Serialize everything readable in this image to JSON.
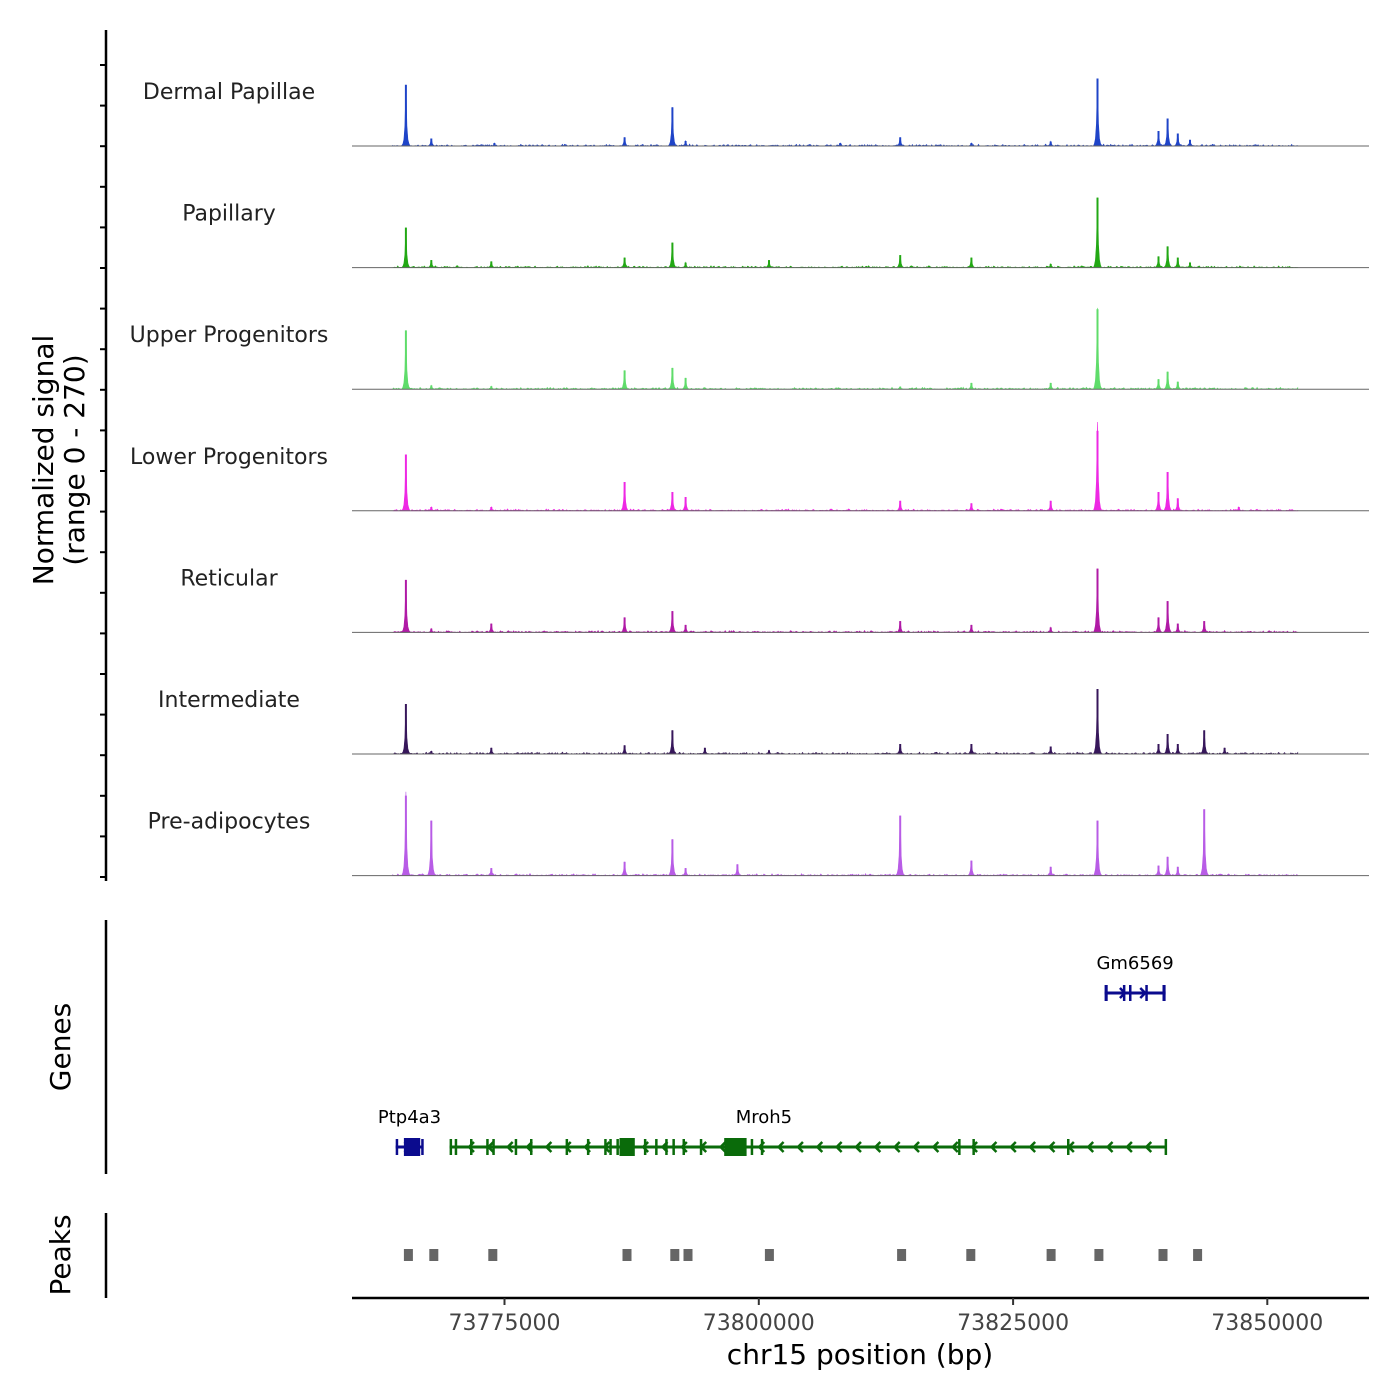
{
  "chart_data": {
    "type": "area",
    "title": "",
    "xlabel": "chr15 position (bp)",
    "ylabel_lines": [
      "Normalized signal",
      "(range 0 - 270)"
    ],
    "ylim": [
      0,
      270
    ],
    "xlim": [
      73760000,
      73860000
    ],
    "xticks": [
      {
        "value": 73775000,
        "label": "73775000"
      },
      {
        "value": 73800000,
        "label": "73800000"
      },
      {
        "value": 73825000,
        "label": "73825000"
      },
      {
        "value": 73850000,
        "label": "73850000"
      }
    ],
    "series": [
      {
        "name": "Dermal Papillae",
        "color": "#1f44c8",
        "peaks": [
          [
            73765300,
            245
          ],
          [
            73767800,
            30
          ],
          [
            73774000,
            12
          ],
          [
            73786800,
            35
          ],
          [
            73791500,
            155
          ],
          [
            73792800,
            20
          ],
          [
            73808000,
            12
          ],
          [
            73813900,
            35
          ],
          [
            73820900,
            12
          ],
          [
            73828700,
            18
          ],
          [
            73833300,
            270
          ],
          [
            73839300,
            60
          ],
          [
            73840200,
            110
          ],
          [
            73841200,
            50
          ],
          [
            73842400,
            25
          ]
        ]
      },
      {
        "name": "Papillary",
        "color": "#22a814",
        "peaks": [
          [
            73765300,
            160
          ],
          [
            73767800,
            30
          ],
          [
            73773700,
            25
          ],
          [
            73786800,
            40
          ],
          [
            73791500,
            100
          ],
          [
            73792800,
            20
          ],
          [
            73801000,
            30
          ],
          [
            73813900,
            50
          ],
          [
            73820900,
            40
          ],
          [
            73828700,
            15
          ],
          [
            73833300,
            280
          ],
          [
            73839300,
            45
          ],
          [
            73840200,
            85
          ],
          [
            73841200,
            40
          ],
          [
            73842400,
            20
          ]
        ]
      },
      {
        "name": "Upper Progenitors",
        "color": "#5fdc6a",
        "peaks": [
          [
            73765300,
            235
          ],
          [
            73767800,
            15
          ],
          [
            73773700,
            12
          ],
          [
            73786800,
            75
          ],
          [
            73791500,
            85
          ],
          [
            73792800,
            45
          ],
          [
            73813900,
            10
          ],
          [
            73820900,
            25
          ],
          [
            73828700,
            25
          ],
          [
            73833300,
            325
          ],
          [
            73839300,
            40
          ],
          [
            73840200,
            70
          ],
          [
            73841200,
            30
          ]
        ]
      },
      {
        "name": "Lower Progenitors",
        "color": "#ee28e4",
        "peaks": [
          [
            73765300,
            225
          ],
          [
            73767800,
            15
          ],
          [
            73773700,
            15
          ],
          [
            73786800,
            115
          ],
          [
            73791500,
            75
          ],
          [
            73792800,
            55
          ],
          [
            73813900,
            40
          ],
          [
            73820900,
            30
          ],
          [
            73828700,
            40
          ],
          [
            73833300,
            355
          ],
          [
            73839300,
            75
          ],
          [
            73840200,
            155
          ],
          [
            73841200,
            50
          ],
          [
            73847200,
            15
          ]
        ]
      },
      {
        "name": "Reticular",
        "color": "#b01aa6",
        "peaks": [
          [
            73765300,
            210
          ],
          [
            73767800,
            15
          ],
          [
            73773700,
            35
          ],
          [
            73786800,
            60
          ],
          [
            73791500,
            85
          ],
          [
            73792800,
            30
          ],
          [
            73813900,
            45
          ],
          [
            73820900,
            30
          ],
          [
            73828700,
            20
          ],
          [
            73833300,
            255
          ],
          [
            73839300,
            60
          ],
          [
            73840200,
            125
          ],
          [
            73841200,
            35
          ],
          [
            73843800,
            45
          ]
        ]
      },
      {
        "name": "Intermediate",
        "color": "#37175b",
        "peaks": [
          [
            73765300,
            200
          ],
          [
            73767800,
            12
          ],
          [
            73773700,
            25
          ],
          [
            73786800,
            35
          ],
          [
            73791500,
            95
          ],
          [
            73794700,
            25
          ],
          [
            73801000,
            15
          ],
          [
            73813900,
            40
          ],
          [
            73820900,
            40
          ],
          [
            73828700,
            30
          ],
          [
            73833300,
            260
          ],
          [
            73839300,
            40
          ],
          [
            73840200,
            80
          ],
          [
            73841200,
            40
          ],
          [
            73843800,
            95
          ],
          [
            73845800,
            25
          ]
        ]
      },
      {
        "name": "Pre-adipocytes",
        "color": "#b85ce6",
        "peaks": [
          [
            73765300,
            335
          ],
          [
            73767800,
            220
          ],
          [
            73773700,
            30
          ],
          [
            73786800,
            55
          ],
          [
            73791500,
            145
          ],
          [
            73792800,
            30
          ],
          [
            73797900,
            45
          ],
          [
            73813900,
            240
          ],
          [
            73820900,
            60
          ],
          [
            73828700,
            35
          ],
          [
            73833300,
            220
          ],
          [
            73839300,
            40
          ],
          [
            73840200,
            75
          ],
          [
            73841200,
            35
          ],
          [
            73843800,
            265
          ]
        ]
      }
    ],
    "genes": [
      {
        "name": "Gm6569",
        "strand": "+",
        "color": "#0b0b8e",
        "start": 73834000,
        "end": 73840000,
        "row": 1,
        "exons": [
          [
            73834000,
            73834300
          ],
          [
            73835800,
            73836000
          ],
          [
            73836400,
            73836500
          ],
          [
            73838000,
            73838200
          ],
          [
            73839700,
            73840000
          ]
        ]
      },
      {
        "name": "Ptp4a3",
        "strand": "+",
        "color": "#0b0b8e",
        "start": 73764300,
        "end": 73767000,
        "row": 2,
        "exons": [
          [
            73764300,
            73764500
          ],
          [
            73765100,
            73766700
          ],
          [
            73766800,
            73767000
          ]
        ]
      },
      {
        "name": "Mroh5",
        "strand": "-",
        "color": "#0a6b0a",
        "start": 73769600,
        "end": 73840000,
        "row": 2,
        "exons": [
          [
            73769600,
            73769800
          ],
          [
            73770100,
            73770200
          ],
          [
            73771600,
            73771700
          ],
          [
            73773200,
            73773400
          ],
          [
            73773800,
            73773900
          ],
          [
            73776000,
            73776100
          ],
          [
            73777500,
            73777600
          ],
          [
            73781000,
            73781100
          ],
          [
            73783100,
            73783200
          ],
          [
            73784800,
            73784900
          ],
          [
            73785300,
            73785400
          ],
          [
            73786000,
            73786200
          ],
          [
            73786300,
            73787800
          ],
          [
            73788700,
            73788900
          ],
          [
            73789800,
            73789900
          ],
          [
            73790800,
            73790900
          ],
          [
            73791500,
            73791600
          ],
          [
            73792500,
            73792600
          ],
          [
            73794200,
            73794300
          ],
          [
            73796600,
            73798800
          ],
          [
            73799200,
            73799400
          ],
          [
            73800200,
            73800300
          ],
          [
            73819600,
            73819800
          ],
          [
            73821000,
            73821100
          ],
          [
            73830300,
            73830400
          ],
          [
            73839900,
            73840000
          ]
        ]
      }
    ],
    "peaks_track": {
      "label": "Peaks",
      "color": "#666666",
      "regions": [
        [
          73765100,
          73765700
        ],
        [
          73767600,
          73768200
        ],
        [
          73773400,
          73774000
        ],
        [
          73786600,
          73787200
        ],
        [
          73791300,
          73791900
        ],
        [
          73792600,
          73793200
        ],
        [
          73800600,
          73801200
        ],
        [
          73813600,
          73814200
        ],
        [
          73820400,
          73821000
        ],
        [
          73828300,
          73828900
        ],
        [
          73833000,
          73833600
        ],
        [
          73839300,
          73839900
        ],
        [
          73842700,
          73843300
        ]
      ]
    },
    "genes_track_label": "Genes"
  }
}
